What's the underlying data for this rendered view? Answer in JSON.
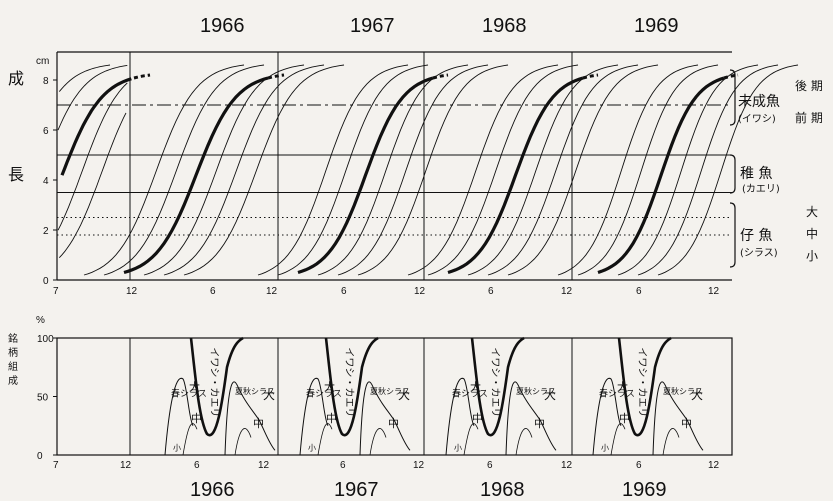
{
  "chart_data": [
    {
      "type": "line",
      "panel": "growth",
      "years": [
        "1966",
        "1967",
        "1968",
        "1969"
      ],
      "ylabel_chars": [
        "成",
        "長"
      ],
      "yunit": "cm",
      "ylim": [
        0,
        9
      ],
      "yticks": [
        "0",
        "2",
        "4",
        "6",
        "8"
      ],
      "xticks": [
        [
          "7",
          "12"
        ],
        [
          "6",
          "12"
        ],
        [
          "6",
          "12"
        ],
        [
          "6",
          "12"
        ],
        [
          "6",
          "12"
        ]
      ],
      "stage_lines": [
        7,
        5,
        3.5,
        2.5,
        1.8
      ],
      "main_series_bold": "yes",
      "right_labels": {
        "adult": "未成魚",
        "adult_sub": "(イワシ)",
        "late": "後 期",
        "early": "前 期",
        "juvenile": "稚 魚",
        "juvenile_sub": "(カエリ)",
        "larva": "仔 魚",
        "larva_sub": "(シラス)",
        "large": "大",
        "mid": "中",
        "small": "小"
      }
    },
    {
      "type": "area",
      "panel": "composition",
      "ylabel_chars": [
        "銘",
        "柄",
        "組",
        "成"
      ],
      "yunit": "%",
      "ylim": [
        0,
        100
      ],
      "yticks": [
        "0",
        "50",
        "100"
      ],
      "years": [
        "1966",
        "1967",
        "1968",
        "1969"
      ],
      "xticks": [
        [
          "7",
          "12"
        ],
        [
          "6",
          "12"
        ],
        [
          "6",
          "12"
        ],
        [
          "6",
          "12"
        ],
        [
          "6",
          "12"
        ]
      ],
      "annotations": {
        "iwashi_kaeri": "イワシ・カエリ",
        "spring_shirasu": "春シラス",
        "summer_autumn_shirasu": "夏秋シラス",
        "large": "大",
        "mid": "中",
        "small": "小"
      }
    }
  ],
  "colors": {
    "ink": "#111111",
    "paper": "#f4f2ee"
  }
}
